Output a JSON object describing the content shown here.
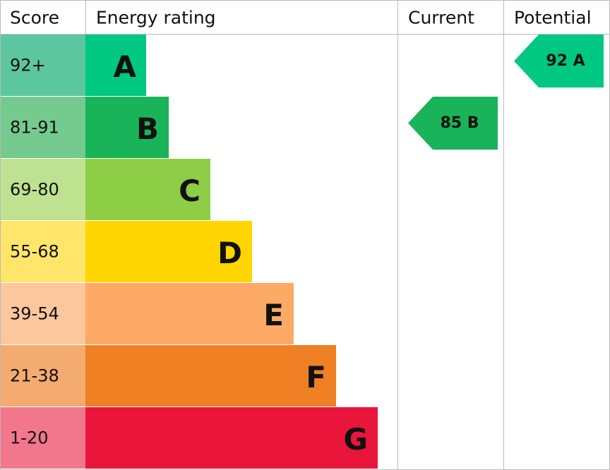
{
  "header": {
    "score": "Score",
    "rating": "Energy rating",
    "current": "Current",
    "potential": "Potential"
  },
  "bands": [
    {
      "score": "92+",
      "letter": "A",
      "color": "#00c781",
      "light": "#5cc6a0"
    },
    {
      "score": "81-91",
      "letter": "B",
      "color": "#19b459",
      "light": "#75ca8f"
    },
    {
      "score": "69-80",
      "letter": "C",
      "color": "#8dce46",
      "light": "#bfe290"
    },
    {
      "score": "55-68",
      "letter": "D",
      "color": "#ffd500",
      "light": "#ffe66a"
    },
    {
      "score": "39-54",
      "letter": "E",
      "color": "#fcaa65",
      "light": "#fdc79e"
    },
    {
      "score": "21-38",
      "letter": "F",
      "color": "#ef8023",
      "light": "#f4ab70"
    },
    {
      "score": "1-20",
      "letter": "G",
      "color": "#e9153b",
      "light": "#f2778c"
    }
  ],
  "current": {
    "text": "85 B",
    "band": 1
  },
  "potential": {
    "text": "92 A",
    "band": 0
  }
}
